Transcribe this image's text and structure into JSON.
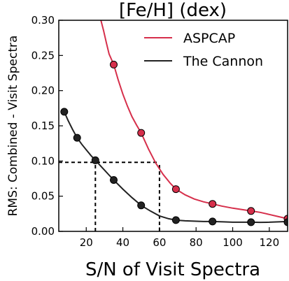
{
  "chart_data": {
    "type": "line",
    "title": "[Fe/H] (dex)",
    "xlabel": "S/N of Visit Spectra",
    "ylabel": "RMS: Combined - Visit Spectra",
    "xlim": [
      5,
      130
    ],
    "ylim": [
      0,
      0.3
    ],
    "x_ticks": [
      20,
      40,
      60,
      80,
      100,
      120
    ],
    "x_tick_labels": [
      "20",
      "40",
      "60",
      "80",
      "100",
      "120"
    ],
    "y_ticks": [
      0.0,
      0.05,
      0.1,
      0.15,
      0.2,
      0.25,
      0.3
    ],
    "y_tick_labels": [
      "0.00",
      "0.05",
      "0.10",
      "0.15",
      "0.20",
      "0.25",
      "0.30"
    ],
    "grid": false,
    "legend_position": "top-right",
    "series": [
      {
        "name": "ASPCAP",
        "color": "#d62f4b",
        "x": [
          35,
          50,
          69,
          89,
          110,
          130
        ],
        "y": [
          0.237,
          0.14,
          0.06,
          0.039,
          0.029,
          0.018
        ],
        "curve_x": [
          28,
          29.5,
          31,
          32.5,
          34,
          35,
          37.5,
          40,
          42.5,
          45,
          47.5,
          50,
          54,
          58,
          62,
          66,
          69,
          74,
          79,
          84,
          89,
          94,
          100,
          105,
          110,
          115,
          120,
          125,
          130
        ],
        "curve_y": [
          0.3,
          0.285,
          0.268,
          0.252,
          0.243,
          0.237,
          0.215,
          0.195,
          0.178,
          0.163,
          0.151,
          0.14,
          0.117,
          0.097,
          0.081,
          0.068,
          0.06,
          0.052,
          0.046,
          0.042,
          0.039,
          0.036,
          0.033,
          0.031,
          0.029,
          0.027,
          0.024,
          0.021,
          0.018
        ]
      },
      {
        "name": "The Cannon",
        "color": "#222222",
        "x": [
          8,
          15,
          25,
          35,
          50,
          69,
          89,
          110,
          130
        ],
        "y": [
          0.17,
          0.133,
          0.101,
          0.073,
          0.037,
          0.016,
          0.014,
          0.013,
          0.013
        ],
        "curve_x": [
          8,
          10,
          12.5,
          15,
          17.5,
          20,
          22.5,
          25,
          27.5,
          30,
          32.5,
          35,
          40,
          45,
          50,
          55,
          60,
          65,
          69,
          74,
          79,
          84,
          89,
          95,
          100,
          105,
          110,
          115,
          120,
          125,
          130
        ],
        "curve_y": [
          0.17,
          0.158,
          0.145,
          0.133,
          0.124,
          0.116,
          0.108,
          0.101,
          0.094,
          0.087,
          0.08,
          0.073,
          0.06,
          0.048,
          0.037,
          0.029,
          0.022,
          0.018,
          0.016,
          0.015,
          0.0145,
          0.014,
          0.014,
          0.0135,
          0.013,
          0.013,
          0.013,
          0.0128,
          0.013,
          0.0135,
          0.014
        ]
      }
    ],
    "reference_lines": [
      {
        "style": "dashed",
        "points": [
          [
            5,
            0.098
          ],
          [
            60,
            0.098
          ]
        ]
      },
      {
        "style": "dashed",
        "points": [
          [
            25,
            0.0
          ],
          [
            25,
            0.098
          ]
        ]
      },
      {
        "style": "dashed",
        "points": [
          [
            60,
            0.0
          ],
          [
            60,
            0.098
          ]
        ]
      }
    ]
  }
}
